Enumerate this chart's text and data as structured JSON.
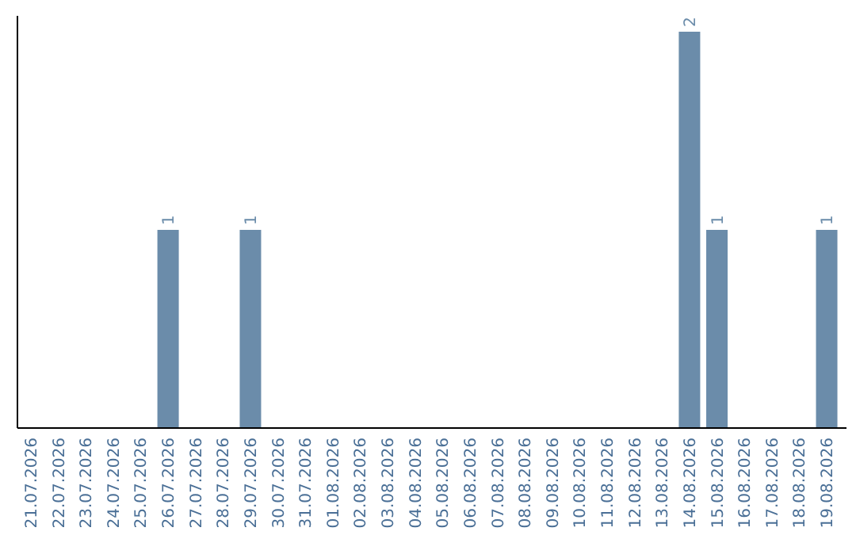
{
  "chart_data": {
    "type": "bar",
    "categories": [
      "21.07.2026",
      "22.07.2026",
      "23.07.2026",
      "24.07.2026",
      "25.07.2026",
      "26.07.2026",
      "27.07.2026",
      "28.07.2026",
      "29.07.2026",
      "30.07.2026",
      "31.07.2026",
      "01.08.2026",
      "02.08.2026",
      "03.08.2026",
      "04.08.2026",
      "05.08.2026",
      "06.08.2026",
      "07.08.2026",
      "08.08.2026",
      "09.08.2026",
      "10.08.2026",
      "11.08.2026",
      "12.08.2026",
      "13.08.2026",
      "14.08.2026",
      "15.08.2026",
      "16.08.2026",
      "17.08.2026",
      "18.08.2026",
      "19.08.2026"
    ],
    "values": [
      0,
      0,
      0,
      0,
      0,
      1,
      0,
      0,
      1,
      0,
      0,
      0,
      0,
      0,
      0,
      0,
      0,
      0,
      0,
      0,
      0,
      0,
      0,
      0,
      2,
      1,
      0,
      0,
      0,
      1
    ],
    "value_labels": [
      null,
      null,
      null,
      null,
      null,
      "1",
      null,
      null,
      "1",
      null,
      null,
      null,
      null,
      null,
      null,
      null,
      null,
      null,
      null,
      null,
      null,
      null,
      null,
      null,
      "2",
      "1",
      null,
      null,
      null,
      "1"
    ],
    "color": "#6b8caa",
    "ylim": [
      0,
      2.08
    ],
    "tick_labels": "x"
  }
}
